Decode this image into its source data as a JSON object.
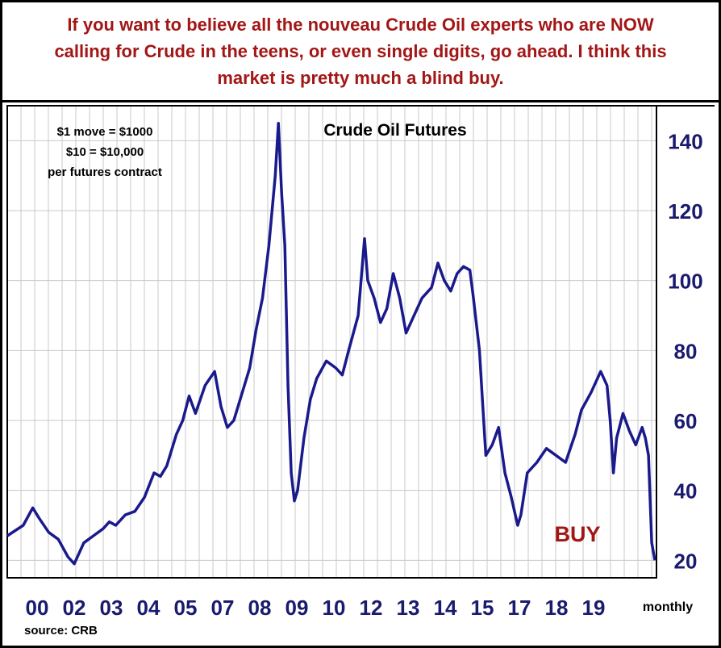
{
  "headline": "If you want to believe all the nouveau Crude Oil experts who are NOW calling for Crude in the teens, or even single digits, go ahead. I think this market is pretty much a blind buy.",
  "colors": {
    "headline": "#a31616",
    "series": "#1a1a8c",
    "axis_text": "#1a1a6e",
    "grid": "#c8c8c8",
    "buy": "#a31616"
  },
  "chart_data": {
    "type": "line",
    "title": "Crude Oil Futures",
    "annotations": {
      "contract_note": [
        "$1 move = $1000",
        "$10 = $10,000",
        "per futures contract"
      ],
      "buy": "BUY",
      "source": "source: CRB",
      "frequency": "monthly"
    },
    "x_tick_labels": [
      "00",
      "02",
      "03",
      "04",
      "05",
      "07",
      "08",
      "09",
      "10",
      "12",
      "13",
      "14",
      "15",
      "17",
      "18",
      "19"
    ],
    "y_ticks": [
      20,
      40,
      60,
      80,
      100,
      120,
      140
    ],
    "ylim": [
      15,
      150
    ],
    "xlim": [
      2000.0,
      2020.35
    ],
    "grid": true,
    "series": [
      {
        "x": [
          2000.0,
          2000.5,
          2000.8,
          2001.0,
          2001.3,
          2001.6,
          2001.9,
          2002.1,
          2002.4,
          2002.7,
          2003.0,
          2003.2,
          2003.4,
          2003.7,
          2004.0,
          2004.3,
          2004.6,
          2004.8,
          2005.0,
          2005.3,
          2005.5,
          2005.7,
          2005.9,
          2006.2,
          2006.5,
          2006.7,
          2006.9,
          2007.1,
          2007.3,
          2007.6,
          2007.8,
          2008.0,
          2008.2,
          2008.4,
          2008.5,
          2008.6,
          2008.7,
          2008.8,
          2008.9,
          2009.0,
          2009.1,
          2009.3,
          2009.5,
          2009.7,
          2010.0,
          2010.3,
          2010.5,
          2010.7,
          2011.0,
          2011.2,
          2011.3,
          2011.5,
          2011.7,
          2011.9,
          2012.1,
          2012.3,
          2012.5,
          2012.7,
          2013.0,
          2013.3,
          2013.5,
          2013.7,
          2013.9,
          2014.1,
          2014.3,
          2014.5,
          2014.6,
          2014.8,
          2014.9,
          2015.0,
          2015.2,
          2015.4,
          2015.6,
          2015.8,
          2016.0,
          2016.1,
          2016.3,
          2016.6,
          2016.9,
          2017.2,
          2017.5,
          2017.8,
          2018.0,
          2018.3,
          2018.6,
          2018.8,
          2018.9,
          2019.0,
          2019.1,
          2019.3,
          2019.5,
          2019.7,
          2019.9,
          2020.0,
          2020.1,
          2020.2,
          2020.3
        ],
        "values": [
          27,
          30,
          35,
          32,
          28,
          26,
          21,
          19,
          25,
          27,
          29,
          31,
          30,
          33,
          34,
          38,
          45,
          44,
          47,
          56,
          60,
          67,
          62,
          70,
          74,
          64,
          58,
          60,
          66,
          75,
          86,
          95,
          110,
          130,
          145,
          125,
          110,
          70,
          45,
          37,
          40,
          55,
          66,
          72,
          77,
          75,
          73,
          80,
          90,
          112,
          100,
          95,
          88,
          92,
          102,
          95,
          85,
          89,
          95,
          98,
          105,
          100,
          97,
          102,
          104,
          103,
          96,
          80,
          65,
          50,
          53,
          58,
          45,
          38,
          30,
          33,
          45,
          48,
          52,
          50,
          48,
          56,
          63,
          68,
          74,
          70,
          60,
          45,
          55,
          62,
          57,
          53,
          58,
          55,
          50,
          25,
          20
        ]
      }
    ]
  }
}
